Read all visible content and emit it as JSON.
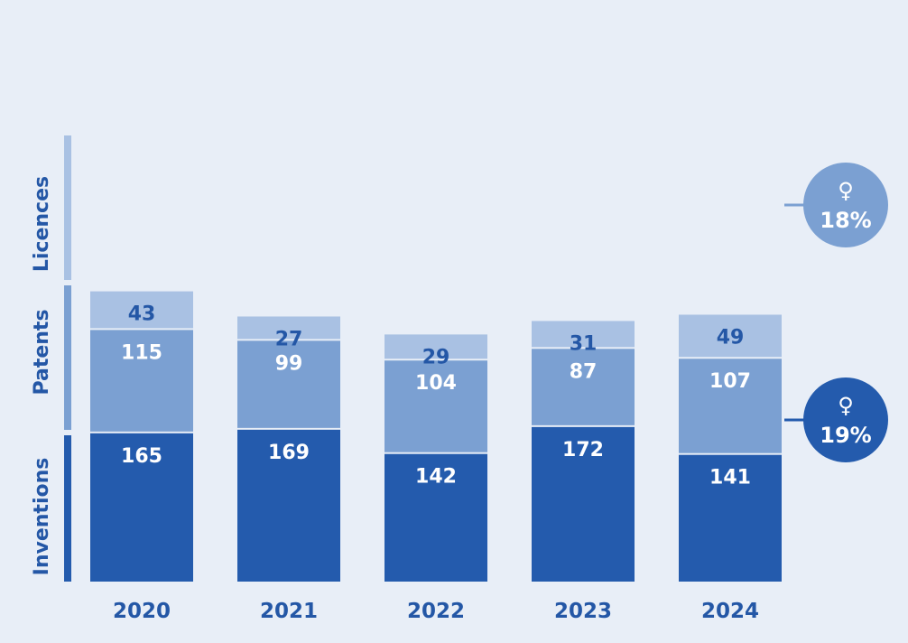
{
  "chart_data": {
    "type": "bar",
    "stacked": true,
    "categories": [
      "2020",
      "2021",
      "2022",
      "2023",
      "2024"
    ],
    "series": [
      {
        "name": "Inventions",
        "values": [
          165,
          169,
          142,
          172,
          141
        ]
      },
      {
        "name": "Patents",
        "values": [
          115,
          99,
          104,
          87,
          107
        ]
      },
      {
        "name": "Licences",
        "values": [
          43,
          27,
          29,
          31,
          49
        ]
      }
    ],
    "legend_position": "left",
    "grid": false
  },
  "colors": {
    "background": "#e8eef7",
    "inventions": "#245bad",
    "patents": "#7ba0d2",
    "licences": "#a9c1e3",
    "label_dark": "#2457a6",
    "label_light": "#ffffff"
  },
  "badges": [
    {
      "symbol": "♀",
      "value": "18%",
      "series": "Patents"
    },
    {
      "symbol": "♀",
      "value": "19%",
      "series": "Inventions"
    }
  ]
}
